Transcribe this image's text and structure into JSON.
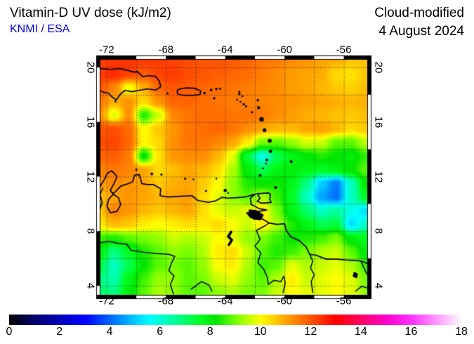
{
  "header": {
    "title": "Vitamin-D UV dose (kJ/m2)",
    "credit": "KNMI / ESA",
    "credit_color": "#0000EE",
    "mode": "Cloud-modified",
    "date": "4 August 2024"
  },
  "axes": {
    "lon_tick_values": [
      -72,
      -68,
      -64,
      -60,
      -56
    ],
    "lon_tick_labels": [
      "-72",
      "-68",
      "-64",
      "-60",
      "-56"
    ],
    "lat_tick_values": [
      20,
      16,
      12,
      8,
      4
    ],
    "lat_tick_labels": [
      "20",
      "16",
      "12",
      "8",
      "4"
    ],
    "grid_step_deg": 2
  },
  "chart_data": {
    "type": "heatmap",
    "title": "Vitamin-D UV dose (kJ/m2)",
    "units": "kJ/m2",
    "lon_range": [
      -72.42,
      -54.42
    ],
    "lat_range": [
      3.33,
      20.57
    ],
    "grid_lon_start": -72.5,
    "grid_lon_step": 1.0,
    "grid_lat_start": 20.5,
    "grid_lat_step": -1.0,
    "values": [
      [
        12.2,
        12.4,
        12.4,
        12.3,
        12.3,
        12.2,
        12.1,
        12.0,
        12.0,
        11.9,
        11.8,
        11.6,
        11.5,
        11.3,
        11.2,
        11.0,
        10.9,
        10.6,
        10.7
      ],
      [
        12.3,
        12.5,
        12.2,
        11.9,
        12.2,
        12.3,
        12.1,
        12.0,
        11.9,
        11.8,
        11.7,
        11.5,
        11.3,
        11.1,
        11.0,
        10.9,
        10.4,
        10.3,
        10.6
      ],
      [
        12.0,
        11.4,
        9.9,
        10.9,
        11.8,
        12.0,
        11.9,
        11.8,
        11.7,
        11.6,
        11.5,
        11.4,
        11.3,
        11.1,
        11.0,
        10.8,
        10.6,
        10.5,
        10.7
      ],
      [
        11.6,
        10.9,
        11.2,
        10.4,
        11.2,
        11.8,
        11.8,
        11.7,
        11.6,
        11.5,
        11.5,
        11.4,
        11.3,
        11.2,
        11.1,
        11.0,
        10.9,
        10.8,
        10.9
      ],
      [
        11.3,
        9.7,
        11.3,
        8.4,
        9.6,
        11.4,
        11.6,
        11.7,
        11.7,
        11.6,
        11.6,
        11.5,
        11.3,
        11.1,
        10.9,
        10.8,
        10.7,
        10.6,
        10.7
      ],
      [
        12.0,
        12.1,
        11.7,
        10.0,
        10.6,
        11.2,
        11.6,
        11.7,
        11.8,
        11.6,
        11.3,
        11.0,
        10.8,
        10.8,
        11.0,
        11.1,
        10.8,
        10.4,
        10.6
      ],
      [
        12.1,
        12.2,
        11.8,
        10.1,
        10.4,
        11.3,
        11.6,
        11.6,
        11.4,
        11.0,
        10.2,
        9.0,
        8.8,
        9.2,
        9.7,
        9.6,
        8.8,
        8.8,
        9.5
      ],
      [
        11.8,
        11.9,
        11.5,
        8.1,
        10.3,
        11.2,
        11.3,
        11.3,
        10.8,
        9.8,
        7.4,
        5.8,
        7.2,
        7.8,
        8.1,
        8.4,
        8.2,
        8.0,
        8.5
      ],
      [
        11.4,
        11.6,
        11.4,
        11.0,
        10.4,
        10.7,
        11.0,
        10.8,
        10.4,
        9.4,
        8.0,
        7.2,
        7.8,
        8.0,
        7.8,
        7.6,
        7.9,
        8.2,
        8.8
      ],
      [
        11.1,
        11.3,
        11.2,
        11.0,
        10.6,
        10.9,
        11.0,
        10.6,
        10.0,
        9.2,
        8.4,
        8.2,
        8.3,
        7.8,
        6.8,
        5.0,
        4.2,
        6.2,
        8.2
      ],
      [
        10.7,
        11.0,
        11.2,
        11.0,
        10.8,
        11.0,
        11.1,
        10.4,
        9.8,
        9.2,
        8.8,
        9.4,
        8.6,
        7.6,
        6.2,
        4.6,
        4.1,
        6.2,
        7.6
      ],
      [
        10.6,
        11.4,
        11.2,
        10.8,
        10.6,
        10.8,
        11.0,
        10.4,
        9.8,
        9.6,
        9.8,
        10.2,
        9.0,
        7.8,
        7.0,
        6.2,
        6.6,
        5.8,
        5.2
      ],
      [
        10.2,
        10.8,
        10.6,
        10.2,
        10.0,
        10.2,
        10.4,
        10.2,
        10.4,
        10.0,
        9.6,
        10.2,
        9.4,
        8.4,
        7.8,
        7.2,
        7.4,
        5.2,
        6.2
      ],
      [
        8.6,
        8.4,
        8.8,
        9.0,
        9.2,
        9.6,
        9.4,
        9.6,
        10.0,
        9.8,
        9.2,
        9.0,
        8.6,
        8.2,
        8.4,
        8.6,
        9.0,
        8.0,
        7.6
      ],
      [
        8.0,
        6.8,
        7.6,
        8.4,
        8.8,
        9.2,
        9.0,
        9.4,
        10.2,
        10.4,
        9.6,
        8.8,
        8.4,
        8.6,
        9.0,
        9.4,
        9.6,
        8.8,
        8.0
      ],
      [
        7.4,
        6.2,
        7.2,
        8.2,
        8.8,
        9.0,
        8.8,
        9.2,
        10.0,
        10.2,
        9.4,
        8.6,
        8.8,
        9.8,
        9.4,
        9.6,
        9.8,
        9.4,
        8.6
      ],
      [
        6.8,
        6.4,
        7.8,
        8.6,
        9.2,
        9.2,
        8.8,
        9.0,
        9.6,
        9.8,
        9.2,
        8.8,
        9.4,
        10.2,
        9.6,
        9.8,
        10.0,
        9.8,
        9.0
      ],
      [
        7.0,
        6.8,
        8.0,
        8.8,
        9.4,
        9.2,
        8.8,
        8.8,
        9.2,
        9.4,
        9.0,
        9.0,
        9.6,
        10.0,
        9.8,
        9.8,
        10.0,
        9.8,
        9.2
      ]
    ]
  },
  "colormap": {
    "stops": [
      [
        0,
        "#000000"
      ],
      [
        1,
        "#000070"
      ],
      [
        2,
        "#0000BB"
      ],
      [
        3,
        "#0000FF"
      ],
      [
        4,
        "#0066FF"
      ],
      [
        5,
        "#00CCFF"
      ],
      [
        5.6,
        "#00FFFF"
      ],
      [
        6.6,
        "#00FF99"
      ],
      [
        7.6,
        "#00FF22"
      ],
      [
        8.2,
        "#00E600"
      ],
      [
        9,
        "#77FF00"
      ],
      [
        10,
        "#FFFF00"
      ],
      [
        11,
        "#FFA500"
      ],
      [
        12,
        "#FF5500"
      ],
      [
        13,
        "#FF0000"
      ],
      [
        14,
        "#FF0066"
      ],
      [
        15,
        "#FF00CC"
      ],
      [
        16,
        "#FF33FF"
      ],
      [
        17,
        "#FF99FF"
      ],
      [
        18,
        "#FFFFFF"
      ]
    ]
  },
  "colorbar": {
    "min": 0,
    "max": 18,
    "tick_values": [
      0,
      2,
      4,
      6,
      8,
      10,
      12,
      14,
      16,
      18
    ],
    "tick_labels": [
      "0",
      "2",
      "4",
      "6",
      "8",
      "10",
      "12",
      "14",
      "16",
      "18"
    ]
  },
  "geo": {
    "coastlines": [
      [
        [
          -72.45,
          19.92
        ],
        [
          -71.75,
          19.85
        ],
        [
          -71.15,
          19.92
        ],
        [
          -70.55,
          19.78
        ],
        [
          -70.1,
          19.65
        ],
        [
          -69.95,
          19.72
        ],
        [
          -69.55,
          19.32
        ],
        [
          -69.2,
          19.4
        ],
        [
          -68.7,
          19.35
        ],
        [
          -68.45,
          19.0
        ],
        [
          -68.35,
          18.6
        ],
        [
          -68.65,
          18.35
        ],
        [
          -69.3,
          18.42
        ],
        [
          -69.85,
          18.32
        ],
        [
          -70.3,
          18.22
        ],
        [
          -70.75,
          18.32
        ],
        [
          -71.05,
          18.08
        ],
        [
          -71.35,
          17.62
        ],
        [
          -71.68,
          17.88
        ],
        [
          -71.85,
          18.1
        ],
        [
          -72.2,
          18.18
        ],
        [
          -72.45,
          18.3
        ]
      ],
      [
        [
          -67.2,
          18.38
        ],
        [
          -66.7,
          18.5
        ],
        [
          -66.1,
          18.48
        ],
        [
          -65.65,
          18.28
        ],
        [
          -65.7,
          18.02
        ],
        [
          -66.2,
          17.95
        ],
        [
          -66.85,
          17.96
        ],
        [
          -67.2,
          18.05
        ],
        [
          -67.25,
          18.22
        ],
        [
          -67.2,
          18.38
        ]
      ],
      [
        [
          -72.45,
          11.25
        ],
        [
          -72.15,
          11.8
        ],
        [
          -71.95,
          12.25
        ],
        [
          -71.65,
          12.42
        ],
        [
          -71.3,
          12.0
        ],
        [
          -71.5,
          11.5
        ],
        [
          -71.75,
          11.0
        ],
        [
          -71.6,
          10.75
        ],
        [
          -71.45,
          10.85
        ],
        [
          -71.05,
          11.3
        ],
        [
          -70.5,
          11.5
        ],
        [
          -70.25,
          11.62
        ],
        [
          -70.12,
          12.1
        ],
        [
          -69.8,
          12.15
        ],
        [
          -69.62,
          11.48
        ],
        [
          -69.25,
          11.42
        ],
        [
          -68.85,
          11.42
        ],
        [
          -68.35,
          11.1
        ],
        [
          -68.4,
          10.6
        ],
        [
          -67.85,
          10.5
        ],
        [
          -67.1,
          10.55
        ],
        [
          -66.25,
          10.6
        ],
        [
          -65.85,
          10.25
        ],
        [
          -65.15,
          10.12
        ],
        [
          -64.65,
          10.22
        ],
        [
          -64.2,
          10.48
        ],
        [
          -63.85,
          10.42
        ],
        [
          -63.25,
          10.45
        ],
        [
          -62.6,
          10.52
        ],
        [
          -62.1,
          10.68
        ],
        [
          -61.95,
          10.72
        ],
        [
          -62.3,
          10.45
        ],
        [
          -62.25,
          9.95
        ],
        [
          -61.7,
          9.65
        ],
        [
          -61.2,
          9.55
        ],
        [
          -62.0,
          9.4
        ],
        [
          -62.55,
          9.35
        ],
        [
          -62.3,
          9.0
        ],
        [
          -61.5,
          8.9
        ],
        [
          -61.05,
          8.6
        ],
        [
          -60.5,
          8.5
        ],
        [
          -60.0,
          8.55
        ],
        [
          -59.9,
          8.1
        ],
        [
          -59.6,
          7.6
        ],
        [
          -59.0,
          7.3
        ],
        [
          -58.55,
          6.85
        ],
        [
          -58.3,
          6.3
        ],
        [
          -57.9,
          6.25
        ],
        [
          -57.2,
          5.95
        ],
        [
          -56.5,
          5.95
        ],
        [
          -55.8,
          5.88
        ],
        [
          -55.1,
          5.85
        ],
        [
          -54.65,
          5.75
        ],
        [
          -54.42,
          5.6
        ]
      ],
      [
        [
          -61.85,
          10.75
        ],
        [
          -61.1,
          10.8
        ],
        [
          -60.95,
          10.7
        ],
        [
          -61.0,
          10.35
        ],
        [
          -60.9,
          10.1
        ],
        [
          -61.55,
          10.05
        ],
        [
          -61.85,
          10.2
        ],
        [
          -61.65,
          10.4
        ],
        [
          -61.85,
          10.75
        ]
      ]
    ],
    "borders": [
      [
        [
          -72.25,
          11.15
        ],
        [
          -72.45,
          10.7
        ],
        [
          -72.3,
          10.1
        ],
        [
          -72.45,
          9.6
        ]
      ],
      [
        [
          -72.45,
          7.15
        ],
        [
          -71.9,
          7.25
        ],
        [
          -71.2,
          7.1
        ],
        [
          -70.65,
          7.05
        ],
        [
          -70.35,
          6.6
        ],
        [
          -69.5,
          6.45
        ],
        [
          -68.6,
          6.35
        ],
        [
          -67.8,
          6.3
        ],
        [
          -67.4,
          6.15
        ],
        [
          -67.65,
          5.6
        ],
        [
          -67.8,
          5.1
        ],
        [
          -67.45,
          4.7
        ],
        [
          -67.7,
          4.1
        ],
        [
          -67.5,
          3.4
        ]
      ],
      [
        [
          -61.05,
          8.6
        ],
        [
          -61.3,
          8.4
        ],
        [
          -61.9,
          8.05
        ],
        [
          -61.65,
          7.4
        ],
        [
          -62.0,
          6.9
        ],
        [
          -61.6,
          6.4
        ],
        [
          -61.8,
          5.7
        ],
        [
          -61.4,
          5.2
        ],
        [
          -61.15,
          4.6
        ],
        [
          -61.1,
          4.1
        ],
        [
          -60.7,
          4.4
        ],
        [
          -60.25,
          4.3
        ],
        [
          -60.05,
          4.7
        ],
        [
          -59.95,
          4.2
        ],
        [
          -60.1,
          3.5
        ]
      ],
      [
        [
          -58.3,
          6.3
        ],
        [
          -58.1,
          5.8
        ],
        [
          -58.25,
          5.3
        ],
        [
          -58.0,
          4.8
        ],
        [
          -58.2,
          4.3
        ],
        [
          -58.1,
          3.5
        ]
      ],
      [
        [
          -54.85,
          5.8
        ],
        [
          -54.6,
          5.2
        ],
        [
          -54.45,
          4.85
        ]
      ],
      [
        [
          -55.2,
          3.6
        ],
        [
          -54.8,
          3.95
        ],
        [
          -54.45,
          3.85
        ]
      ],
      [
        [
          -66.3,
          3.75
        ],
        [
          -65.6,
          4.3
        ],
        [
          -65.1,
          4.05
        ],
        [
          -64.9,
          3.6
        ]
      ]
    ],
    "river_lake_squiggle": [
      [
        -63.6,
        7.95
      ],
      [
        -63.8,
        7.6
      ],
      [
        -63.55,
        7.35
      ],
      [
        -63.75,
        7.0
      ]
    ],
    "lake_outline": [
      [
        -71.55,
        10.7
      ],
      [
        -71.2,
        10.45
      ],
      [
        -71.05,
        9.95
      ],
      [
        -71.3,
        9.45
      ],
      [
        -71.75,
        9.35
      ],
      [
        -71.98,
        9.85
      ],
      [
        -71.85,
        10.35
      ],
      [
        -71.55,
        10.7
      ]
    ],
    "delta_fill": [
      [
        -62.4,
        9.6
      ],
      [
        -61.9,
        9.55
      ],
      [
        -61.4,
        9.2
      ],
      [
        -61.6,
        8.8
      ],
      [
        -62.1,
        8.85
      ],
      [
        -62.45,
        9.2
      ]
    ],
    "reservoir_fill": [
      [
        -55.3,
        4.95
      ],
      [
        -55.1,
        4.85
      ],
      [
        -55.15,
        4.6
      ],
      [
        -55.35,
        4.7
      ]
    ],
    "islands": [
      [
        -67.9,
        18.1,
        1.5
      ],
      [
        -65.4,
        18.12,
        1.8
      ],
      [
        -64.95,
        18.35,
        1.8
      ],
      [
        -64.6,
        18.42,
        1.8
      ],
      [
        -64.35,
        18.45,
        1.5
      ],
      [
        -64.75,
        17.74,
        1.8
      ],
      [
        -63.05,
        18.22,
        1.4
      ],
      [
        -63.05,
        18.05,
        1.8
      ],
      [
        -62.85,
        17.9,
        1.4
      ],
      [
        -63.2,
        17.63,
        1.3
      ],
      [
        -62.97,
        17.48,
        1.3
      ],
      [
        -61.8,
        17.6,
        1.8
      ],
      [
        -62.75,
        17.3,
        1.8
      ],
      [
        -62.6,
        17.15,
        1.5
      ],
      [
        -61.75,
        17.05,
        2.2
      ],
      [
        -62.2,
        16.72,
        1.6
      ],
      [
        -61.55,
        16.2,
        3.2
      ],
      [
        -61.35,
        15.4,
        2.6
      ],
      [
        -61.0,
        14.62,
        2.8
      ],
      [
        -60.95,
        13.85,
        2.4
      ],
      [
        -61.2,
        13.22,
        1.9
      ],
      [
        -61.25,
        12.95,
        1.3
      ],
      [
        -61.45,
        12.6,
        1.3
      ],
      [
        -61.65,
        12.08,
        2.0
      ],
      [
        -59.55,
        13.1,
        2.0
      ],
      [
        -60.6,
        11.2,
        2.0
      ],
      [
        -64.0,
        10.98,
        2.4
      ],
      [
        -63.8,
        10.8,
        1.2
      ],
      [
        -65.3,
        10.95,
        1.5
      ],
      [
        -66.15,
        11.8,
        1.2
      ],
      [
        -66.7,
        11.85,
        1.5
      ],
      [
        -70.0,
        12.5,
        1.5
      ],
      [
        -68.95,
        12.2,
        1.9
      ],
      [
        -68.3,
        12.15,
        1.6
      ],
      [
        -71.4,
        17.5,
        1.4
      ],
      [
        -64.6,
        11.85,
        1.2
      ]
    ]
  }
}
